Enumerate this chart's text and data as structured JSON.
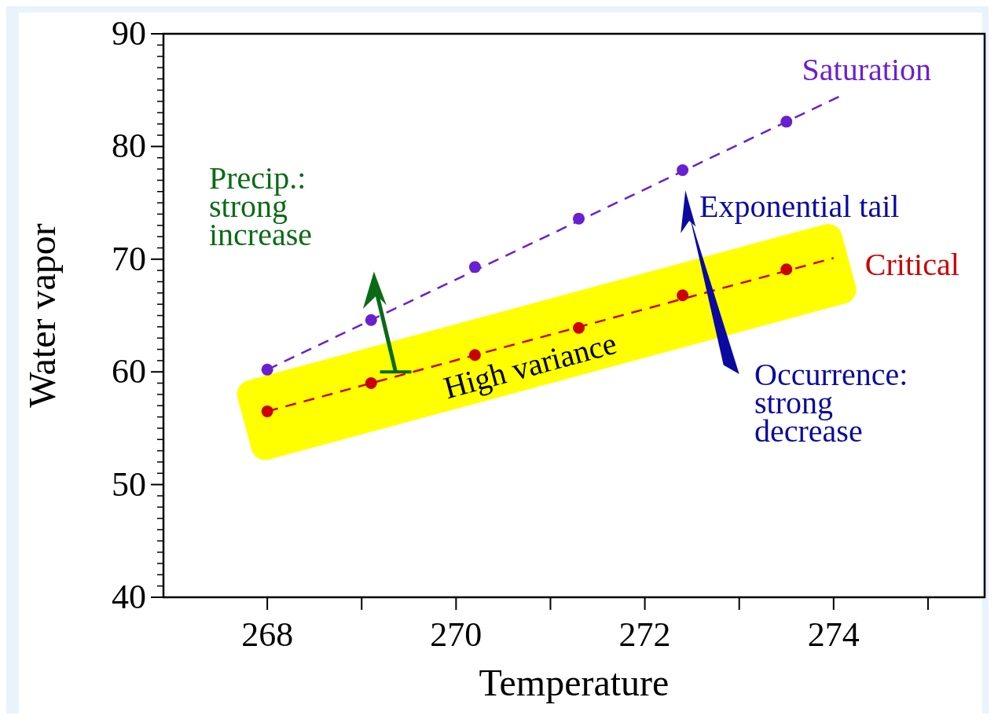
{
  "chart_data": {
    "type": "scatter",
    "xlabel": "Temperature",
    "ylabel": "Water vapor",
    "xlim": [
      266.9,
      275.6
    ],
    "ylim": [
      40,
      90
    ],
    "xticks": [
      268,
      {
        "value": 269,
        "label": null
      },
      270,
      {
        "value": 271,
        "label": null
      },
      272,
      {
        "value": 273,
        "label": null
      },
      274,
      {
        "value": 275,
        "label": null
      }
    ],
    "yticks": [
      40,
      {
        "value": 41,
        "label": null
      },
      {
        "value": 42,
        "label": null
      },
      {
        "value": 43,
        "label": null
      },
      {
        "value": 44,
        "label": null
      },
      {
        "value": 45,
        "label": null
      },
      {
        "value": 46,
        "label": null
      },
      {
        "value": 47,
        "label": null
      },
      {
        "value": 48,
        "label": null
      },
      {
        "value": 49,
        "label": null
      },
      50,
      {
        "value": 51,
        "label": null
      },
      {
        "value": 52,
        "label": null
      },
      {
        "value": 53,
        "label": null
      },
      {
        "value": 54,
        "label": null
      },
      {
        "value": 55,
        "label": null
      },
      {
        "value": 56,
        "label": null
      },
      {
        "value": 57,
        "label": null
      },
      {
        "value": 58,
        "label": null
      },
      {
        "value": 59,
        "label": null
      },
      60,
      {
        "value": 61,
        "label": null
      },
      {
        "value": 62,
        "label": null
      },
      {
        "value": 63,
        "label": null
      },
      {
        "value": 64,
        "label": null
      },
      {
        "value": 65,
        "label": null
      },
      {
        "value": 66,
        "label": null
      },
      {
        "value": 67,
        "label": null
      },
      {
        "value": 68,
        "label": null
      },
      {
        "value": 69,
        "label": null
      },
      70,
      {
        "value": 71,
        "label": null
      },
      {
        "value": 72,
        "label": null
      },
      {
        "value": 73,
        "label": null
      },
      {
        "value": 74,
        "label": null
      },
      {
        "value": 75,
        "label": null
      },
      {
        "value": 76,
        "label": null
      },
      {
        "value": 77,
        "label": null
      },
      {
        "value": 78,
        "label": null
      },
      {
        "value": 79,
        "label": null
      },
      80,
      {
        "value": 81,
        "label": null
      },
      {
        "value": 82,
        "label": null
      },
      {
        "value": 83,
        "label": null
      },
      {
        "value": 84,
        "label": null
      },
      {
        "value": 85,
        "label": null
      },
      {
        "value": 86,
        "label": null
      },
      {
        "value": 87,
        "label": null
      },
      {
        "value": 88,
        "label": null
      },
      {
        "value": 89,
        "label": null
      },
      90
    ],
    "grid": false,
    "series": [
      {
        "type": "line",
        "name": "Saturation",
        "color": "#6a1fd0",
        "x": [
          268,
          274.1
        ],
        "values": [
          60.2,
          84.6
        ],
        "line_style": "dashed",
        "marker": "none"
      },
      {
        "type": "line",
        "name": "Critical",
        "color": "#cc0000",
        "x": [
          268,
          274.0
        ],
        "values": [
          56.5,
          70.1
        ],
        "line_style": "dashed",
        "marker": "none"
      },
      {
        "color": "#6a1fd0",
        "x": [
          268,
          269.1,
          270.2,
          271.3,
          272.4,
          273.5
        ],
        "values": [
          60.2,
          64.6,
          69.3,
          73.6,
          77.9,
          82.2
        ],
        "marker": "circle"
      },
      {
        "color": "#cc0000",
        "x": [
          268,
          269.1,
          270.2,
          271.3,
          272.4,
          273.5
        ],
        "values": [
          56.5,
          59.0,
          61.5,
          63.9,
          66.8,
          69.1
        ],
        "marker": "circle"
      }
    ],
    "annotations": [
      "Precip.:\nstrong\nincrease",
      "Exponential tail",
      "Occurrence:\nstrong\ndecrease",
      "High variance"
    ]
  }
}
